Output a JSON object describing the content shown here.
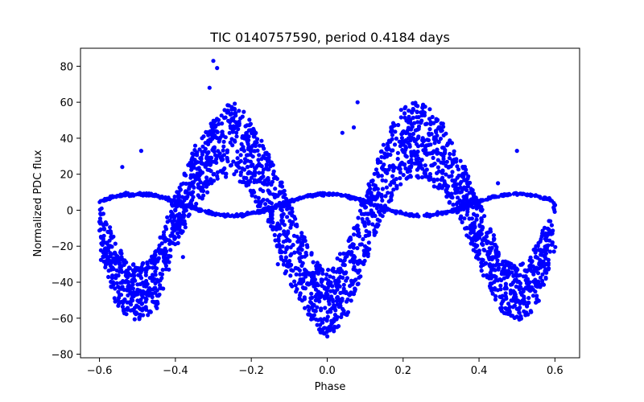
{
  "chart_data": {
    "type": "scatter",
    "title": "TIC 0140757590, period 0.4184 days",
    "xlabel": "Phase",
    "ylabel": "Normalized PDC flux",
    "xlim": [
      -0.65,
      0.665
    ],
    "ylim": [
      -82,
      90
    ],
    "xticks": [
      -0.6,
      -0.4,
      -0.2,
      0.0,
      0.2,
      0.4,
      0.6
    ],
    "xtick_labels": [
      "−0.6",
      "−0.4",
      "−0.2",
      "0.0",
      "0.2",
      "0.4",
      "0.6"
    ],
    "yticks": [
      -80,
      -60,
      -40,
      -20,
      0,
      20,
      40,
      60,
      80
    ],
    "ytick_labels": [
      "−80",
      "−60",
      "−40",
      "−20",
      "0",
      "20",
      "40",
      "60",
      "80"
    ],
    "grid": false,
    "marker_color": "#0000ff",
    "series": [
      {
        "description_points": "approximate envelope samples of folded light curve",
        "x": [
          -0.6,
          -0.55,
          -0.5,
          -0.45,
          -0.4,
          -0.35,
          -0.3,
          -0.25,
          -0.2,
          -0.15,
          -0.1,
          -0.05,
          0.0,
          0.05,
          0.1,
          0.15,
          0.2,
          0.25,
          0.3,
          0.35,
          0.4,
          0.45,
          0.5,
          0.55,
          0.6
        ],
        "y_upper": [
          5,
          -20,
          -32,
          -22,
          10,
          35,
          50,
          62,
          50,
          30,
          5,
          -20,
          -32,
          -20,
          10,
          40,
          58,
          62,
          50,
          30,
          5,
          -20,
          -32,
          -20,
          5
        ],
        "y_lower": [
          -25,
          -55,
          -62,
          -55,
          -20,
          0,
          15,
          20,
          10,
          -10,
          -40,
          -60,
          -72,
          -60,
          -30,
          0,
          15,
          18,
          10,
          -5,
          -30,
          -55,
          -62,
          -55,
          -25
        ]
      }
    ],
    "outlier_points": [
      {
        "x": -0.3,
        "y": 83
      },
      {
        "x": -0.29,
        "y": 79
      },
      {
        "x": -0.31,
        "y": 68
      },
      {
        "x": -0.49,
        "y": 33
      },
      {
        "x": 0.5,
        "y": 33
      },
      {
        "x": 0.08,
        "y": 60
      },
      {
        "x": 0.07,
        "y": 46
      },
      {
        "x": 0.04,
        "y": 43
      },
      {
        "x": -0.54,
        "y": 24
      },
      {
        "x": -0.04,
        "y": -60
      },
      {
        "x": -0.13,
        "y": -30
      },
      {
        "x": -0.38,
        "y": -26
      },
      {
        "x": 0.45,
        "y": 15
      },
      {
        "x": 0.35,
        "y": 10
      }
    ]
  }
}
